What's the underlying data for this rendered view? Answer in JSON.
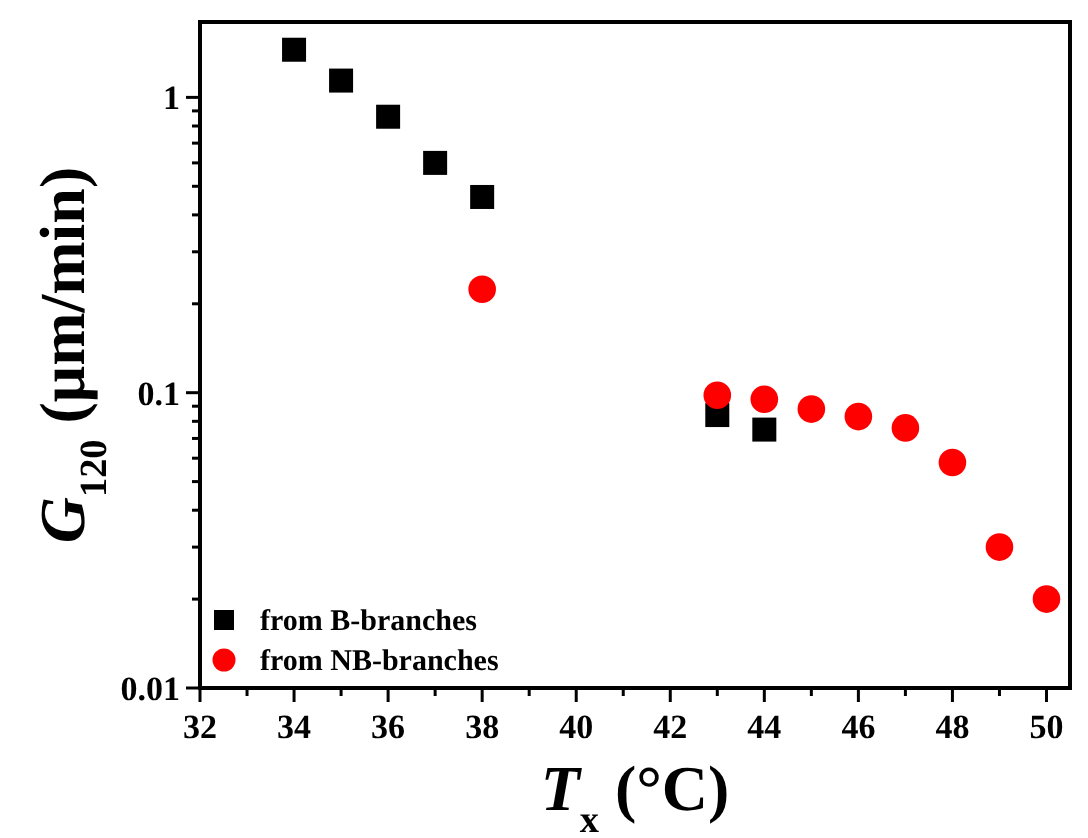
{
  "chart_data": {
    "type": "scatter",
    "xlabel": "T$_{x}$ (°C)",
    "ylabel": "G$_{120}$ (μm/min)",
    "log": "y",
    "xlim": [
      32,
      50.5
    ],
    "ylim": [
      0.01,
      1.8
    ],
    "xticks": [
      32,
      {
        "value": 33,
        "label": null
      },
      34,
      {
        "value": 35,
        "label": null
      },
      36,
      {
        "value": 37,
        "label": null
      },
      38,
      {
        "value": 39,
        "label": null
      },
      40,
      {
        "value": 41,
        "label": null
      },
      42,
      {
        "value": 43,
        "label": null
      },
      44,
      {
        "value": 45,
        "label": null
      },
      46,
      {
        "value": 47,
        "label": null
      },
      48,
      {
        "value": 49,
        "label": null
      },
      50
    ],
    "yticks": [
      0.01,
      {
        "value": 0.02,
        "label": null
      },
      {
        "value": 0.03,
        "label": null
      },
      {
        "value": 0.04,
        "label": null
      },
      {
        "value": 0.05,
        "label": null
      },
      {
        "value": 0.06,
        "label": null
      },
      {
        "value": 0.07,
        "label": null
      },
      {
        "value": 0.08,
        "label": null
      },
      {
        "value": 0.09,
        "label": null
      },
      0.1,
      {
        "value": 0.2,
        "label": null
      },
      {
        "value": 0.3,
        "label": null
      },
      {
        "value": 0.4,
        "label": null
      },
      {
        "value": 0.5,
        "label": null
      },
      {
        "value": 0.6,
        "label": null
      },
      {
        "value": 0.7,
        "label": null
      },
      {
        "value": 0.8,
        "label": null
      },
      {
        "value": 0.9,
        "label": null
      },
      1
    ],
    "grid": false,
    "legend": "bottom left",
    "series": [
      {
        "name": "from B-branches",
        "color": "#000000",
        "marker": "square",
        "x": [
          34,
          35,
          36,
          37,
          38,
          43,
          44
        ],
        "values": [
          1.45,
          1.14,
          0.86,
          0.6,
          0.46,
          0.084,
          0.075
        ]
      },
      {
        "name": "from NB-branches",
        "color": "#ff0000",
        "marker": "circle",
        "x": [
          38,
          43,
          44,
          45,
          46,
          47,
          48,
          49,
          50
        ],
        "values": [
          0.224,
          0.098,
          0.095,
          0.088,
          0.083,
          0.076,
          0.058,
          0.03,
          0.02
        ]
      }
    ]
  }
}
